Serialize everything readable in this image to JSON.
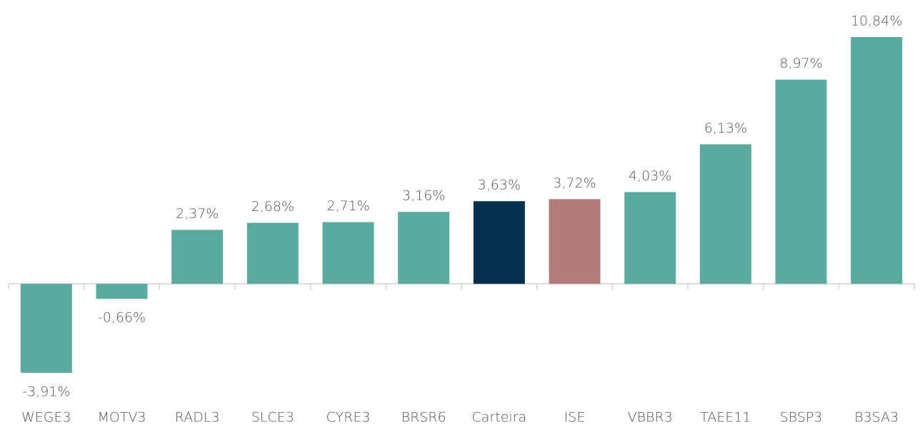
{
  "chart_data": {
    "type": "bar",
    "categories": [
      "WEGE3",
      "MOTV3",
      "RADL3",
      "SLCE3",
      "CYRE3",
      "BRSR6",
      "Carteira",
      "ISE",
      "VBBR3",
      "TAEE11",
      "SBSP3",
      "B3SA3"
    ],
    "values": [
      -3.91,
      -0.66,
      2.37,
      2.68,
      2.71,
      3.16,
      3.63,
      3.72,
      4.03,
      6.13,
      8.97,
      10.84
    ],
    "value_labels": [
      "-3,91%",
      "-0,66%",
      "2,37%",
      "2,68%",
      "2,71%",
      "3,16%",
      "3,63%",
      "3,72%",
      "4,03%",
      "6,13%",
      "8,97%",
      "10,84%"
    ],
    "colors": [
      "#5aaa9f",
      "#5aaa9f",
      "#5aaa9f",
      "#5aaa9f",
      "#5aaa9f",
      "#5aaa9f",
      "#02304d",
      "#b47b7b",
      "#5aaa9f",
      "#5aaa9f",
      "#5aaa9f",
      "#5aaa9f"
    ]
  }
}
